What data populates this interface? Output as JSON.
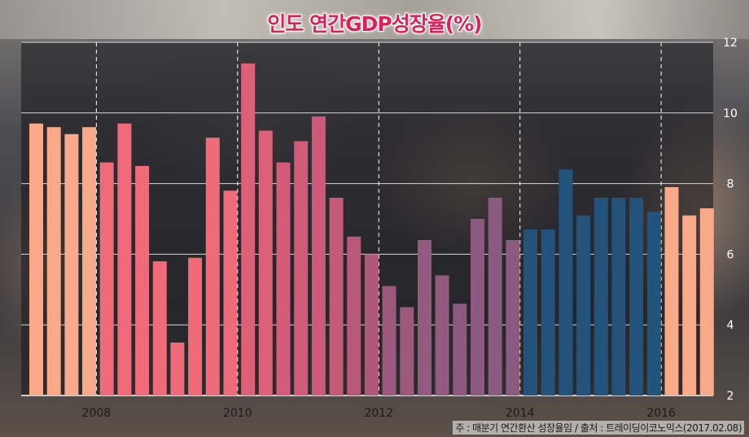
{
  "header": {
    "title": "인도 연간GDP성장율(%)"
  },
  "footer": {
    "note": "주 : 매분기 연간환산 성장율임 / 출처 : 트레이딩이코노믹스(2017.02.08)"
  },
  "chart_data": {
    "type": "bar",
    "title": "인도 연간GDP성장율(%)",
    "xlabel": "",
    "ylabel": "",
    "ylim": [
      2,
      12
    ],
    "yticks": [
      2,
      4,
      6,
      8,
      10,
      12
    ],
    "xticks": [
      "2008",
      "2010",
      "2012",
      "2014",
      "2016"
    ],
    "grid": {
      "horizontal": "solid",
      "vertical": "dashed"
    },
    "colors": {
      "peach": "#f7a98a",
      "pink": "#ef6b7a",
      "mauve": "#b0607a",
      "purple": "#8a5a80",
      "navy": "#23527a"
    },
    "values": [
      9.7,
      9.6,
      9.4,
      9.6,
      8.6,
      9.7,
      8.5,
      5.8,
      3.5,
      5.9,
      9.3,
      7.8,
      11.4,
      9.5,
      8.6,
      9.2,
      9.9,
      7.6,
      6.5,
      6.0,
      5.1,
      4.5,
      6.4,
      5.4,
      4.6,
      7.0,
      7.6,
      6.4,
      6.7,
      6.7,
      8.4,
      7.1,
      7.6,
      7.6,
      7.6,
      7.2,
      7.9,
      7.1,
      7.3
    ],
    "bar_colors": [
      "#f7a98a",
      "#f7a98a",
      "#f7a98a",
      "#f7a98a",
      "#ef6b7a",
      "#ef6b7a",
      "#ef6b7a",
      "#ef6b7a",
      "#ef6b7a",
      "#ef6b7a",
      "#ef6b7a",
      "#ef6b7a",
      "#dc6078",
      "#dc6078",
      "#d45c78",
      "#d05b78",
      "#cc5a78",
      "#c25a78",
      "#b85878",
      "#b05878",
      "#9b5a7c",
      "#9b5a7c",
      "#925a7e",
      "#925a7e",
      "#8a5a80",
      "#8a5a80",
      "#8a5a80",
      "#8a5a80",
      "#23527a",
      "#23527a",
      "#23527a",
      "#23527a",
      "#23527a",
      "#23527a",
      "#23527a",
      "#23527a",
      "#f7a98a",
      "#f7a98a",
      "#f7a98a"
    ]
  }
}
